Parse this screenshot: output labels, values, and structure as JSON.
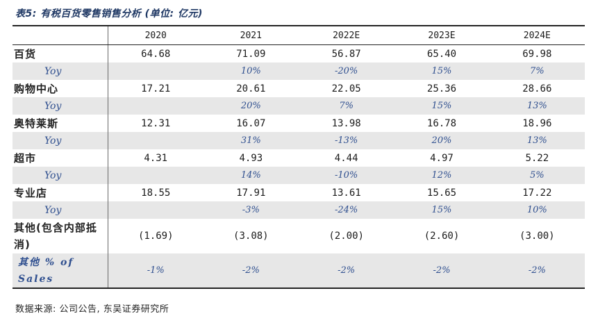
{
  "title": "表5: 有税百货零售销售分析 (单位: 亿元)",
  "header": [
    "",
    "2020",
    "2021",
    "2022E",
    "2023E",
    "2024E"
  ],
  "rows": [
    {
      "label": "百货",
      "values": [
        "64.68",
        "71.09",
        "56.87",
        "65.40",
        "69.98"
      ]
    },
    {
      "label": "Yoy",
      "values": [
        "",
        "10%",
        "-20%",
        "15%",
        "7%"
      ]
    },
    {
      "label": "购物中心",
      "values": [
        "17.21",
        "20.61",
        "22.05",
        "25.36",
        "28.66"
      ]
    },
    {
      "label": "Yoy",
      "values": [
        "",
        "20%",
        "7%",
        "15%",
        "13%"
      ]
    },
    {
      "label": "奥特莱斯",
      "values": [
        "12.31",
        "16.07",
        "13.98",
        "16.78",
        "18.96"
      ]
    },
    {
      "label": "Yoy",
      "values": [
        "",
        "31%",
        "-13%",
        "20%",
        "13%"
      ]
    },
    {
      "label": "超市",
      "values": [
        "4.31",
        "4.93",
        "4.44",
        "4.97",
        "5.22"
      ]
    },
    {
      "label": "Yoy",
      "values": [
        "",
        "14%",
        "-10%",
        "12%",
        "5%"
      ]
    },
    {
      "label": "专业店",
      "values": [
        "18.55",
        "17.91",
        "13.61",
        "15.65",
        "17.22"
      ]
    },
    {
      "label": "Yoy",
      "values": [
        "",
        "-3%",
        "-24%",
        "15%",
        "10%"
      ]
    },
    {
      "label": "其他(包含内部抵消)",
      "values": [
        "(1.69)",
        "(3.08)",
        "(2.00)",
        "(2.60)",
        "(3.00)"
      ]
    },
    {
      "label": "其他 % of Sales",
      "values": [
        "-1%",
        "-2%",
        "-2%",
        "-2%",
        "-2%"
      ]
    }
  ],
  "source": "数据来源: 公司公告, 东吴证券研究所"
}
